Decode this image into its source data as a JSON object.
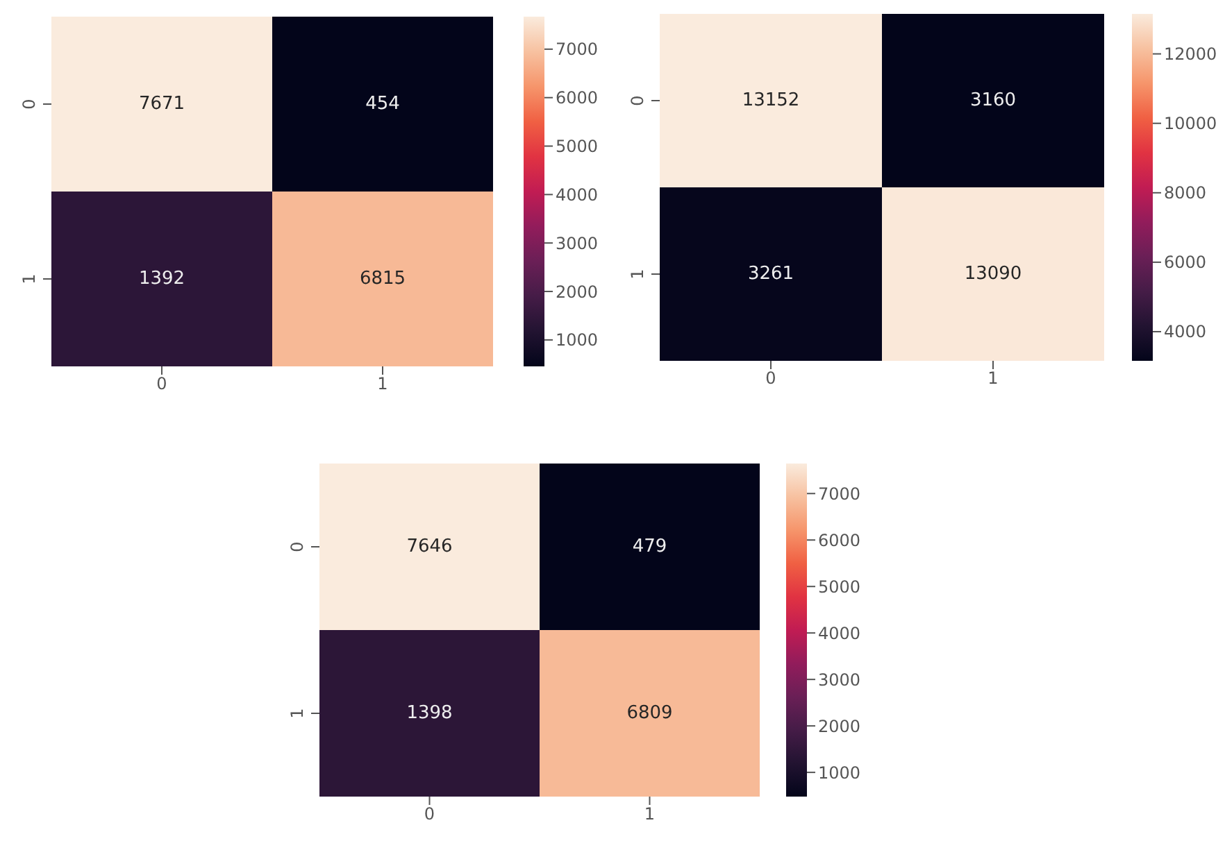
{
  "chart_data": [
    {
      "type": "heatmap",
      "categories": [
        "0",
        "1"
      ],
      "y_categories": [
        "0",
        "1"
      ],
      "cells": [
        [
          7671,
          454
        ],
        [
          1392,
          6815
        ]
      ],
      "clim": [
        454,
        7671
      ],
      "cticks": [
        1000,
        2000,
        3000,
        4000,
        5000,
        6000,
        7000
      ],
      "data_labels": true
    },
    {
      "type": "heatmap",
      "categories": [
        "0",
        "1"
      ],
      "y_categories": [
        "0",
        "1"
      ],
      "cells": [
        [
          13152,
          3160
        ],
        [
          3261,
          13090
        ]
      ],
      "clim": [
        3160,
        13152
      ],
      "cticks": [
        4000,
        6000,
        8000,
        10000,
        12000
      ],
      "data_labels": true
    },
    {
      "type": "heatmap",
      "categories": [
        "0",
        "1"
      ],
      "y_categories": [
        "0",
        "1"
      ],
      "cells": [
        [
          7646,
          479
        ],
        [
          1398,
          6809
        ]
      ],
      "clim": [
        479,
        7646
      ],
      "cticks": [
        1000,
        2000,
        3000,
        4000,
        5000,
        6000,
        7000
      ],
      "data_labels": true
    }
  ]
}
